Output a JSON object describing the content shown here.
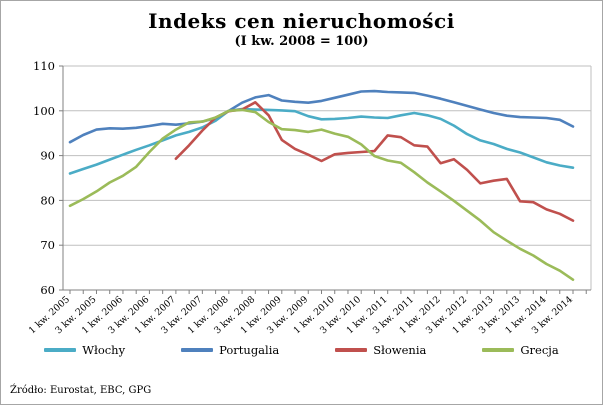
{
  "figure": {
    "title": "Indeks cen nieruchomości",
    "subtitle": "(I kw. 2008 = 100)",
    "source": "Źródło: Eurostat, EBC, GPG"
  },
  "chart_data": {
    "type": "line",
    "title": "Indeks cen nieruchomości",
    "subtitle": "(I kw. 2008 = 100)",
    "source": "Źródło: Eurostat, EBC, GPG",
    "grid": "horizontal",
    "legend_position": "bottom",
    "y_axis": {
      "min": 60,
      "max": 110,
      "ticks": [
        60,
        70,
        80,
        90,
        100,
        110
      ]
    },
    "n_points": 39,
    "points_per_label": 2,
    "x_tick_labels": [
      "1 kw. 2005",
      "3 kw. 2005",
      "1 kw. 2006",
      "3 kw. 2006",
      "1 kw. 2007",
      "3 kw. 2007",
      "1 kw. 2008",
      "3 kw. 2008",
      "1 kw. 2009",
      "3 kw. 2009",
      "1 kw. 2010",
      "3 kw. 2010",
      "1 kw. 2011",
      "3 kw. 2011",
      "1 kw. 2012",
      "3 kw. 2012",
      "1 kw. 2013",
      "3 kw. 2013",
      "1 kw. 2014",
      "3 kw. 2014"
    ],
    "colors": {
      "axis": "#808080",
      "gridline": "#bfbfbf",
      "text": "#000000"
    },
    "series": [
      {
        "name": "Włochy",
        "color": "#4BACC6",
        "values": [
          86.0,
          87.0,
          88.0,
          89.1,
          90.2,
          91.3,
          92.3,
          93.4,
          94.5,
          95.3,
          96.3,
          97.8,
          100.0,
          100.4,
          100.3,
          100.2,
          100.1,
          99.9,
          98.8,
          98.1,
          98.2,
          98.4,
          98.7,
          98.5,
          98.4,
          99.0,
          99.5,
          99.0,
          98.2,
          96.7,
          94.8,
          93.4,
          92.6,
          91.5,
          90.7,
          89.6,
          88.5,
          87.8,
          87.3
        ]
      },
      {
        "name": "Portugalia",
        "color": "#4F81BD",
        "values": [
          93.0,
          94.6,
          95.8,
          96.1,
          96.0,
          96.2,
          96.6,
          97.1,
          96.9,
          97.2,
          97.6,
          98.4,
          100.0,
          101.8,
          103.0,
          103.5,
          102.3,
          102.0,
          101.8,
          102.2,
          102.9,
          103.6,
          104.3,
          104.4,
          104.2,
          104.1,
          104.0,
          103.4,
          102.7,
          101.9,
          101.1,
          100.3,
          99.5,
          98.9,
          98.6,
          98.5,
          98.4,
          98.0,
          96.5
        ]
      },
      {
        "name": "Słowenia",
        "color": "#C0504D",
        "values": [
          null,
          null,
          null,
          null,
          null,
          null,
          null,
          null,
          89.3,
          92.3,
          95.6,
          98.5,
          99.9,
          100.3,
          101.9,
          99.0,
          93.5,
          91.5,
          90.2,
          88.8,
          90.3,
          90.6,
          90.8,
          91.0,
          94.5,
          94.1,
          92.3,
          92.0,
          88.3,
          89.2,
          86.8,
          83.8,
          84.4,
          84.8,
          79.8,
          79.6,
          78.0,
          77.0,
          75.5
        ]
      },
      {
        "name": "Grecja",
        "color": "#9BBB59",
        "values": [
          78.8,
          80.3,
          82.0,
          84.0,
          85.5,
          87.5,
          90.8,
          93.8,
          95.8,
          97.4,
          97.6,
          98.5,
          100.0,
          100.2,
          99.7,
          97.5,
          95.9,
          95.7,
          95.3,
          95.8,
          94.9,
          94.2,
          92.5,
          89.9,
          88.9,
          88.4,
          86.3,
          84.0,
          82.0,
          79.9,
          77.7,
          75.5,
          72.9,
          71.0,
          69.2,
          67.7,
          65.8,
          64.3,
          62.3
        ]
      }
    ]
  }
}
